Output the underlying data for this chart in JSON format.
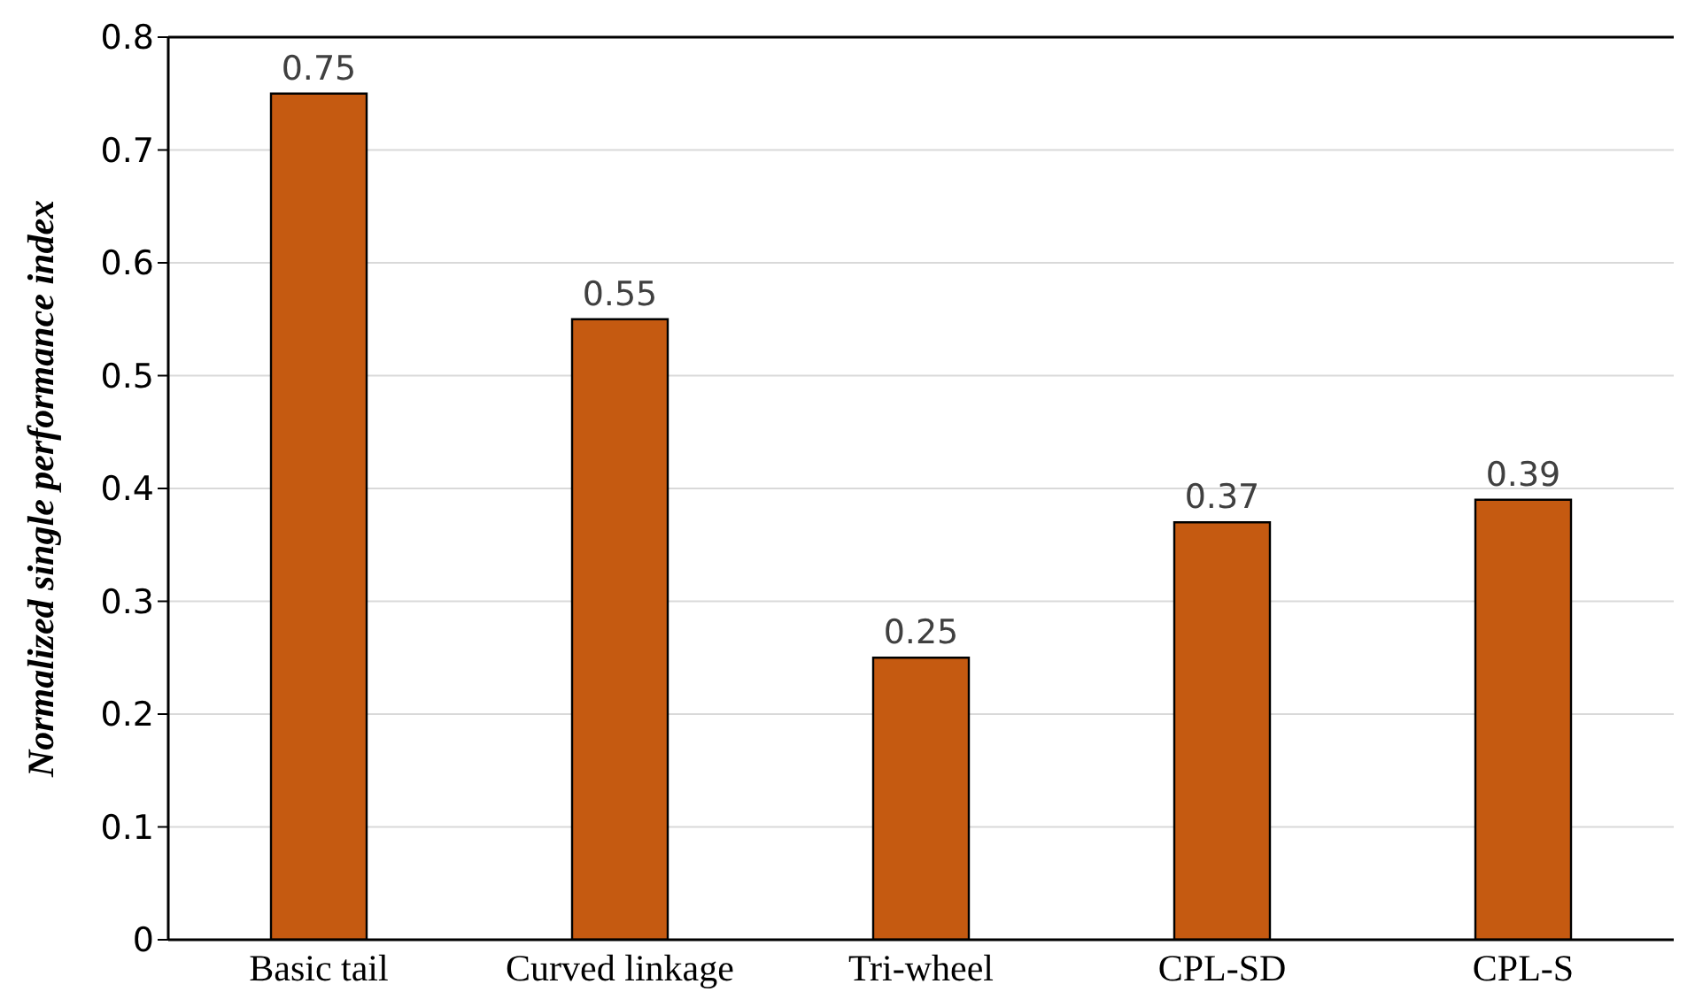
{
  "chart_data": {
    "type": "bar",
    "ylabel": "Normalized single performance index",
    "categories": [
      "Basic tail",
      "Curved linkage",
      "Tri-wheel",
      "CPL-SD",
      "CPL-S"
    ],
    "values": [
      0.75,
      0.55,
      0.25,
      0.37,
      0.39
    ],
    "color": "#c55a11",
    "ylim": [
      0,
      0.8
    ],
    "yticks": [
      0,
      0.1,
      0.2,
      0.3,
      0.4,
      0.5,
      0.6,
      0.7,
      0.8
    ],
    "grid": "y",
    "data_labels": true
  }
}
